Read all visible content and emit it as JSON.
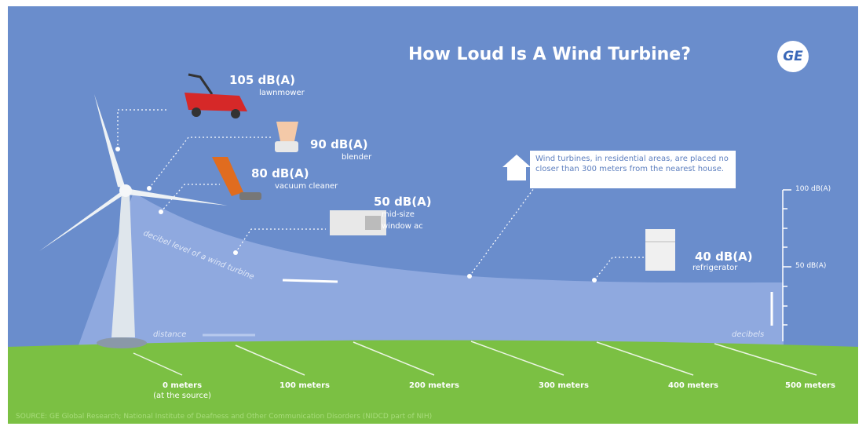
{
  "title": "How Loud Is A Wind Turbine?",
  "logo": "GE",
  "sources": [
    {
      "level": "105 dB(A)",
      "name": "lawnmower"
    },
    {
      "level": "90 dB(A)",
      "name": "blender"
    },
    {
      "level": "80 dB(A)",
      "name": "vacuum cleaner"
    },
    {
      "level": "50 dB(A)",
      "name": [
        "mid-size",
        "window ac"
      ]
    },
    {
      "level": "40 dB(A)",
      "name": "refrigerator"
    }
  ],
  "note": "Wind turbines, in residential areas, are placed no closer than 300 meters from the nearest house.",
  "curve_label": "decibel level of a wind turbine",
  "distance_label": "distance",
  "decibels_label": "decibels",
  "scale": [
    "100 dB(A)",
    "50 dB(A)"
  ],
  "distances": [
    {
      "label": "0 meters",
      "sub": "(at the source)"
    },
    {
      "label": "100 meters"
    },
    {
      "label": "200 meters"
    },
    {
      "label": "300 meters"
    },
    {
      "label": "400 meters"
    },
    {
      "label": "500 meters"
    }
  ],
  "source": "SOURCE: GE Global Research; National Institute of Deafness and Other Communication Disorders (NIDCD part of NIH)"
}
